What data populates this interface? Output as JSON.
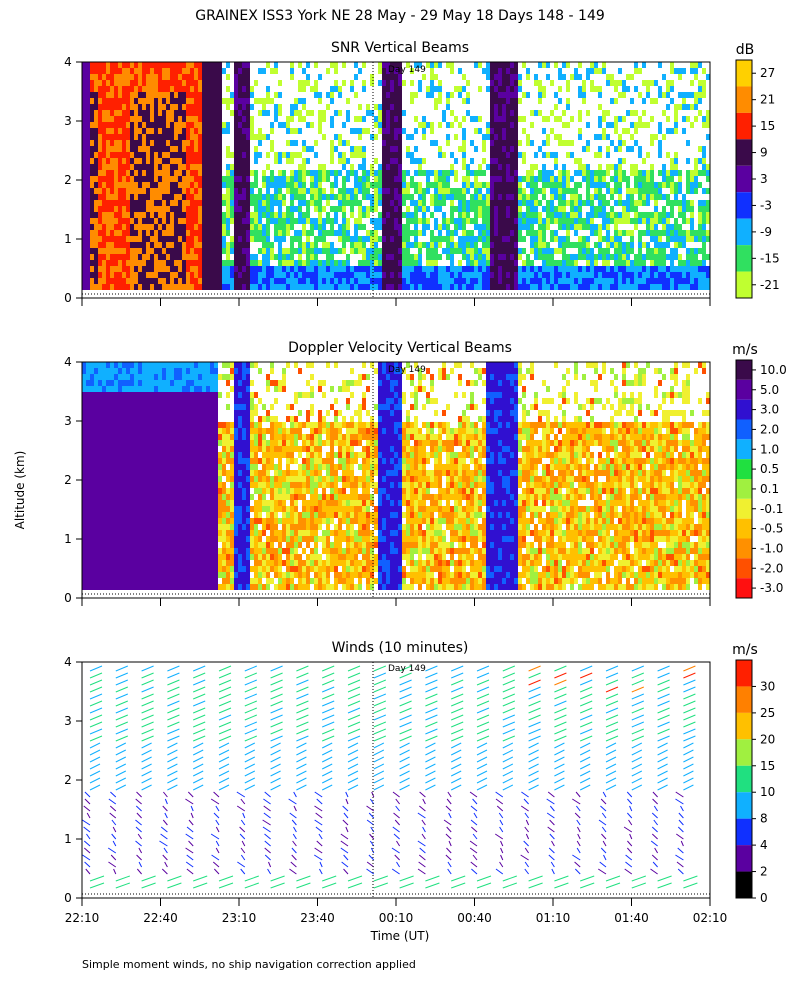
{
  "title": "GRAINEX ISS3 York NE  28 May - 29 May 18 Days 148 - 149",
  "footer_note": "Simple moment winds, no ship navigation correction applied",
  "ylabel": "Altitude (km)",
  "xlabel": "Time (UT)",
  "day_marker": "Day 149",
  "x_ticks": [
    "22:10",
    "22:40",
    "23:10",
    "23:40",
    "00:10",
    "00:40",
    "01:10",
    "01:40",
    "02:10"
  ],
  "y_ticks": [
    "0",
    "1",
    "2",
    "3",
    "4"
  ],
  "chart_data": [
    {
      "type": "heatmap",
      "title": "SNR Vertical Beams",
      "units": "dB",
      "ylim": [
        0,
        4
      ],
      "colorbar_labels": [
        "27",
        "21",
        "15",
        "9",
        "3",
        "-3",
        "-9",
        "-15",
        "-21"
      ],
      "colorbar_colors": [
        "#ffd000",
        "#ff8c00",
        "#ff2000",
        "#3a0a4a",
        "#5a00a0",
        "#1030ff",
        "#10b0ff",
        "#30e060",
        "#c0ff30"
      ]
    },
    {
      "type": "heatmap",
      "title": "Doppler Velocity Vertical Beams",
      "units": "m/s",
      "ylim": [
        0,
        4
      ],
      "colorbar_labels": [
        "10.0",
        "5.0",
        "3.0",
        "2.0",
        "1.0",
        "0.5",
        "0.1",
        "-0.1",
        "-0.5",
        "-1.0",
        "-2.0",
        "-3.0"
      ],
      "colorbar_colors": [
        "#3a0a4a",
        "#5a00a0",
        "#3010d0",
        "#1060ff",
        "#10b0ff",
        "#20e040",
        "#a0f040",
        "#f0f030",
        "#ffc000",
        "#ff9000",
        "#ff5000",
        "#ff1010"
      ]
    },
    {
      "type": "wind-barbs",
      "title": "Winds (10 minutes)",
      "units": "m/s",
      "ylim": [
        0,
        4
      ],
      "colorbar_labels": [
        "30",
        "25",
        "20",
        "15",
        "10",
        "8",
        "4",
        "2",
        "0"
      ],
      "colorbar_colors": [
        "#ff2000",
        "#ff8000",
        "#ffc000",
        "#a0f040",
        "#20e080",
        "#10b0ff",
        "#1030ff",
        "#5a00a0",
        "#000000"
      ]
    }
  ]
}
